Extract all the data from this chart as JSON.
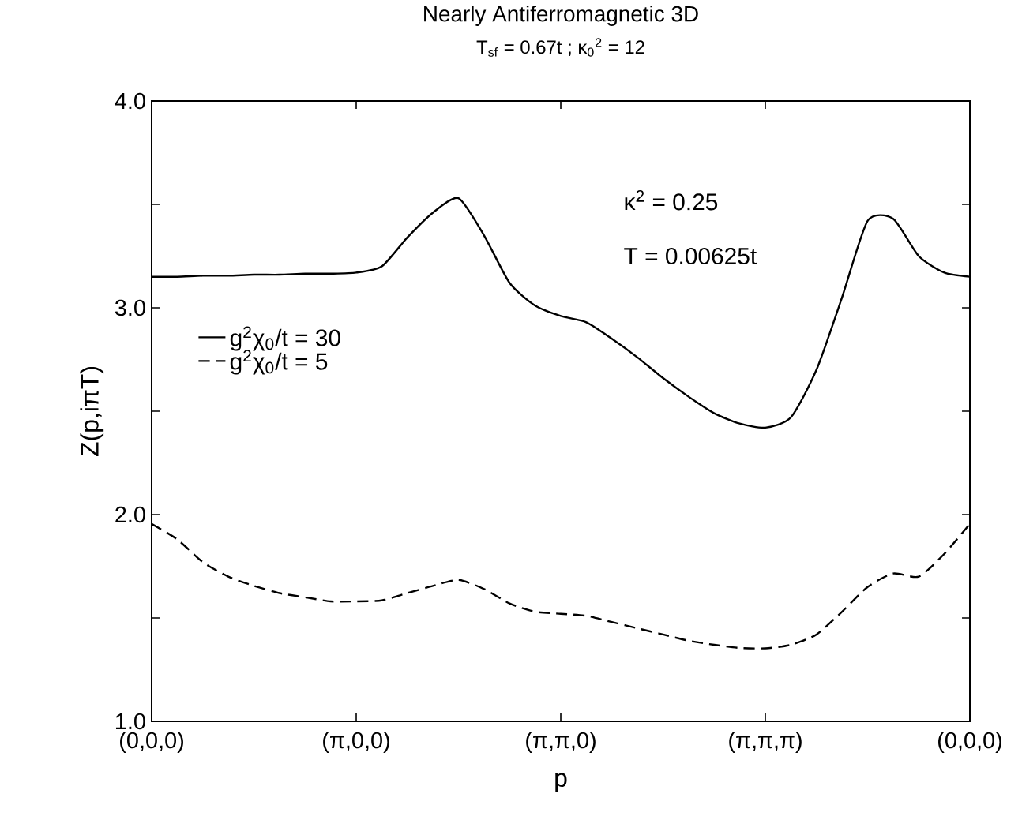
{
  "chart_data": {
    "type": "line",
    "title": "Nearly Antiferromagnetic 3D",
    "subtitle": "T$_{sf}$ = 0.67t ; κ$_{0}$$^{2}$ = 12",
    "xlabel": "p",
    "ylabel": "Z(p,iπT)",
    "annotations": [
      "κ$^{2}$ = 0.25",
      "T = 0.00625t"
    ],
    "categories": [
      "(0,0,0)",
      null,
      null,
      null,
      null,
      null,
      null,
      null,
      "(π,0,0)",
      null,
      null,
      null,
      null,
      null,
      null,
      null,
      "(π,π,0)",
      null,
      null,
      null,
      null,
      null,
      null,
      null,
      "(π,π,π)",
      null,
      null,
      null,
      null,
      null,
      null,
      null,
      "(0,0,0)"
    ],
    "ylim": [
      1,
      4
    ],
    "yticks": [
      {
        "value": 1,
        "label": "1.0"
      },
      {
        "value": 1.5,
        "label": null
      },
      {
        "value": 2,
        "label": "2.0"
      },
      {
        "value": 2.5,
        "label": null
      },
      {
        "value": 3,
        "label": "3.0"
      },
      {
        "value": 3.5,
        "label": null
      },
      {
        "value": 4,
        "label": "4.0"
      }
    ],
    "legend": "left",
    "grid": false,
    "marker": "none",
    "series": [
      {
        "name": "g$^{2}$χ$_{0}$/t = 30",
        "color": "#000000",
        "line_style": "solid",
        "values": [
          3.15,
          3.15,
          3.155,
          3.155,
          3.16,
          3.16,
          3.165,
          3.165,
          3.17,
          3.2,
          3.34,
          3.46,
          3.53,
          3.35,
          3.12,
          3.01,
          2.96,
          2.93,
          2.85,
          2.76,
          2.66,
          2.57,
          2.49,
          2.44,
          2.42,
          2.47,
          2.7,
          3.05,
          3.42,
          3.43,
          3.25,
          3.17,
          3.15
        ]
      },
      {
        "name": "g$^{2}$χ$_{0}$/t = 5",
        "color": "#000000",
        "line_style": "dashed",
        "values": [
          1.955,
          1.88,
          1.77,
          1.7,
          1.655,
          1.62,
          1.6,
          1.58,
          1.58,
          1.585,
          1.62,
          1.655,
          1.684,
          1.64,
          1.57,
          1.53,
          1.52,
          1.51,
          1.48,
          1.45,
          1.42,
          1.39,
          1.37,
          1.355,
          1.353,
          1.37,
          1.42,
          1.53,
          1.65,
          1.715,
          1.7,
          1.81,
          1.955
        ]
      }
    ]
  }
}
